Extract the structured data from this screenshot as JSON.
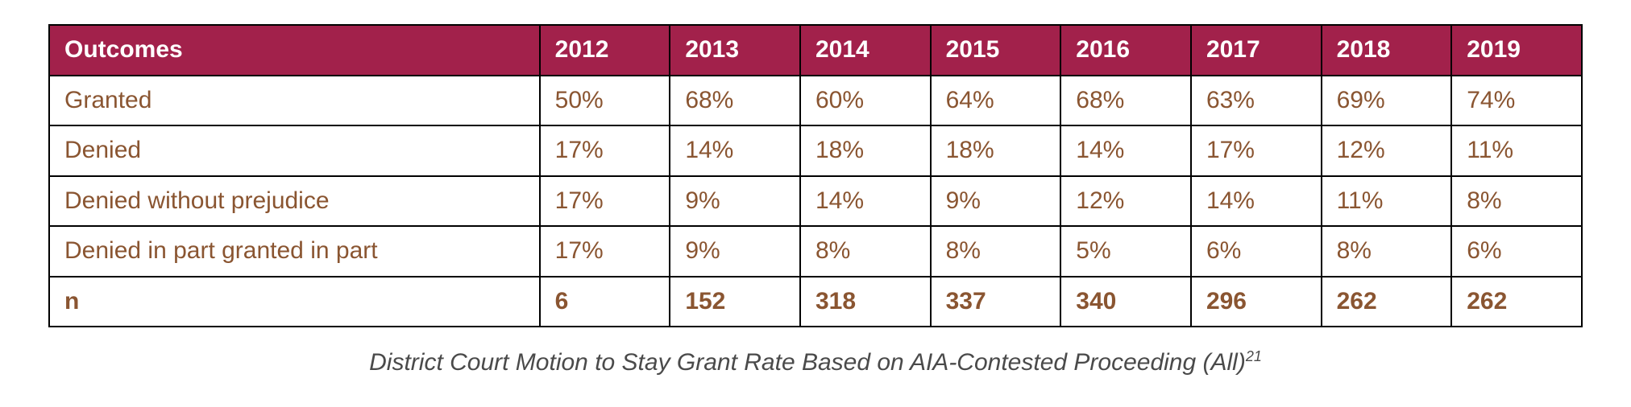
{
  "table": {
    "type": "table",
    "header_bg": "#a2214b",
    "header_text_color": "#ffffff",
    "cell_text_color": "#8a5531",
    "border_color": "#000000",
    "columns": [
      "Outcomes",
      "2012",
      "2013",
      "2014",
      "2015",
      "2016",
      "2017",
      "2018",
      "2019"
    ],
    "col_widths_pct": [
      32,
      8.5,
      8.5,
      8.5,
      8.5,
      8.5,
      8.5,
      8.5,
      8.5
    ],
    "rows": [
      {
        "label": "Granted",
        "values": [
          "50%",
          "68%",
          "60%",
          "64%",
          "68%",
          "63%",
          "69%",
          "74%"
        ],
        "bold": false
      },
      {
        "label": "Denied",
        "values": [
          "17%",
          "14%",
          "18%",
          "18%",
          "14%",
          "17%",
          "12%",
          "11%"
        ],
        "bold": false
      },
      {
        "label": "Denied without prejudice",
        "values": [
          "17%",
          "9%",
          "14%",
          "9%",
          "12%",
          "14%",
          "11%",
          "8%"
        ],
        "bold": false
      },
      {
        "label": "Denied in part granted in part",
        "values": [
          "17%",
          "9%",
          "8%",
          "8%",
          "5%",
          "6%",
          "8%",
          "6%"
        ],
        "bold": false
      },
      {
        "label": "n",
        "values": [
          "6",
          "152",
          "318",
          "337",
          "340",
          "296",
          "262",
          "262"
        ],
        "bold": true
      }
    ]
  },
  "caption": {
    "text": "District Court Motion to Stay Grant Rate Based on AIA-Contested Proceeding (All)",
    "footnote": "21",
    "fontsize_pt": 30,
    "color": "#4a4a4a"
  }
}
